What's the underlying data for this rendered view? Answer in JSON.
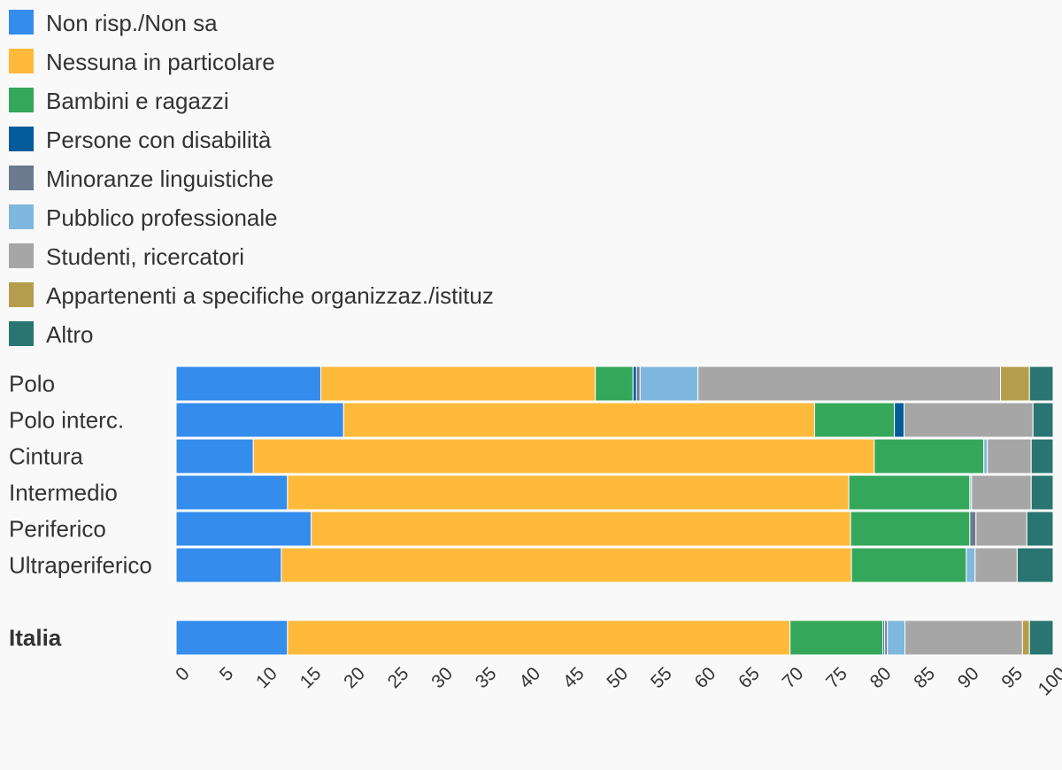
{
  "chart_data": {
    "type": "bar",
    "orientation": "horizontal",
    "stacked": true,
    "normalized": true,
    "legend_position": "top-left",
    "grid": false,
    "categories": [
      "Polo",
      "Polo interc.",
      "Cintura",
      "Intermedio",
      "Periferico",
      "Ultraperiferico",
      "Italia"
    ],
    "bold_categories": [
      "Italia"
    ],
    "series": [
      {
        "name": "Non risp./Non sa",
        "color": "#348ced",
        "values": [
          16.5,
          19.1,
          8.8,
          12.7,
          15.4,
          12.0,
          12.7
        ]
      },
      {
        "name": "Nessuna in particolare",
        "color": "#ffb93b",
        "values": [
          31.3,
          53.7,
          70.8,
          64.0,
          61.5,
          65.0,
          57.3
        ]
      },
      {
        "name": "Bambini e ragazzi",
        "color": "#35a75a",
        "values": [
          4.3,
          9.1,
          12.5,
          13.8,
          13.6,
          13.1,
          10.6
        ]
      },
      {
        "name": "Persone con disabilità",
        "color": "#035b9b",
        "values": [
          0.4,
          1.1,
          0.0,
          0.0,
          0.0,
          0.0,
          0.2
        ]
      },
      {
        "name": "Minoranze linguistiche",
        "color": "#6b7a8f",
        "values": [
          0.4,
          0.0,
          0.0,
          0.0,
          0.7,
          0.0,
          0.3
        ]
      },
      {
        "name": "Pubblico professionale",
        "color": "#7fb8de",
        "values": [
          6.6,
          0.0,
          0.4,
          0.2,
          0.0,
          1.0,
          2.0
        ]
      },
      {
        "name": "Studenti, ricercatori",
        "color": "#a6a6a6",
        "values": [
          34.5,
          14.7,
          5.0,
          6.8,
          5.8,
          4.8,
          13.4
        ]
      },
      {
        "name": "Appartenenti a specifiche organizzaz./istituz",
        "color": "#b59d4e",
        "values": [
          3.3,
          0.0,
          0.0,
          0.0,
          0.0,
          0.0,
          0.8
        ]
      },
      {
        "name": "Altro",
        "color": "#2a7572",
        "values": [
          2.7,
          2.3,
          2.5,
          2.5,
          3.0,
          4.1,
          2.7
        ]
      }
    ],
    "xlim": [
      0,
      100
    ],
    "xticks": [
      0,
      5,
      10,
      15,
      20,
      25,
      30,
      35,
      40,
      45,
      50,
      55,
      60,
      65,
      70,
      75,
      80,
      85,
      90,
      95,
      100
    ]
  }
}
